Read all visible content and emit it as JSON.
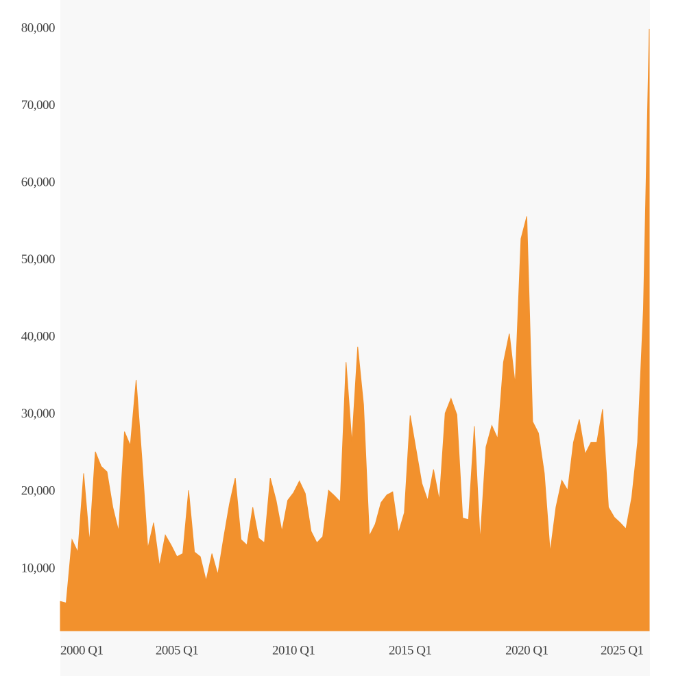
{
  "chart_data": {
    "type": "area",
    "color": "#f2912d",
    "categories": [
      "2000 Q1",
      null,
      null,
      null,
      null,
      null,
      null,
      null,
      null,
      null,
      null,
      null,
      null,
      null,
      null,
      null,
      null,
      null,
      null,
      null,
      "2005 Q1",
      null,
      null,
      null,
      null,
      null,
      null,
      null,
      null,
      null,
      null,
      null,
      null,
      null,
      null,
      null,
      null,
      null,
      null,
      null,
      "2010 Q1",
      null,
      null,
      null,
      null,
      null,
      null,
      null,
      null,
      null,
      null,
      null,
      null,
      null,
      null,
      null,
      null,
      null,
      null,
      null,
      "2015 Q1",
      null,
      null,
      null,
      null,
      null,
      null,
      null,
      null,
      null,
      null,
      null,
      null,
      null,
      null,
      null,
      null,
      null,
      null,
      null,
      "2020 Q1",
      null,
      null,
      null,
      null,
      null,
      null,
      null,
      null,
      null,
      null,
      null,
      null,
      null,
      null,
      null,
      null,
      null,
      null,
      null,
      "2025 Q1",
      null
    ],
    "values": [
      5800,
      5600,
      13800,
      12200,
      22400,
      13500,
      25200,
      23300,
      22600,
      18000,
      14900,
      27800,
      26000,
      34500,
      24200,
      12700,
      16000,
      10400,
      14400,
      13100,
      11600,
      12000,
      20200,
      12200,
      11600,
      8500,
      12000,
      9300,
      14000,
      18400,
      21800,
      13800,
      13100,
      18000,
      14000,
      13400,
      21800,
      18900,
      14900,
      18900,
      19900,
      21400,
      19800,
      14900,
      13400,
      14200,
      20200,
      19500,
      18700,
      36800,
      26400,
      38800,
      31300,
      14300,
      15800,
      18600,
      19600,
      20000,
      14700,
      17300,
      29900,
      25500,
      21100,
      18900,
      22900,
      18900,
      30200,
      32100,
      30000,
      16600,
      16400,
      28500,
      13700,
      25800,
      28600,
      26900,
      36800,
      40500,
      34000,
      52800,
      55700,
      29100,
      27600,
      22400,
      12200,
      18000,
      21500,
      20200,
      26400,
      29400,
      24900,
      26400,
      26400,
      30700,
      18000,
      16700,
      16000,
      15200,
      19300,
      26400,
      43700,
      80000
    ],
    "ylim": [
      2000,
      80000
    ],
    "yticks": [
      {
        "value": 10000,
        "label": "10,000"
      },
      {
        "value": 20000,
        "label": "20,000"
      },
      {
        "value": 30000,
        "label": "30,000"
      },
      {
        "value": 40000,
        "label": "40,000"
      },
      {
        "value": 50000,
        "label": "50,000"
      },
      {
        "value": 60000,
        "label": "60,000"
      },
      {
        "value": 70000,
        "label": "70,000"
      },
      {
        "value": 80000,
        "label": "80,000"
      }
    ]
  }
}
